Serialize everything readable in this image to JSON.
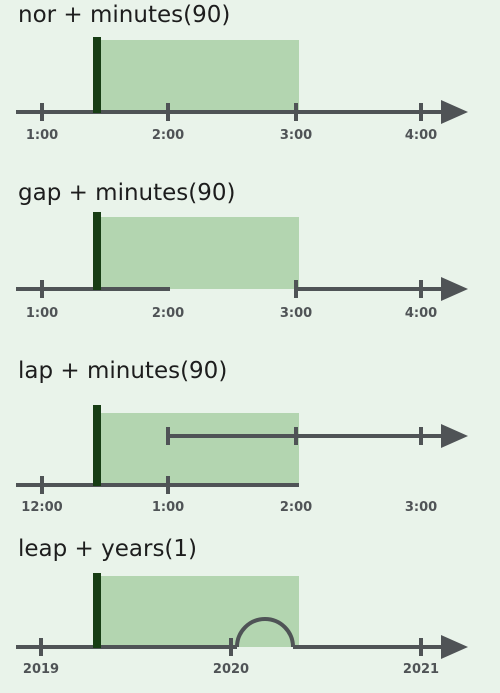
{
  "colors": {
    "background": "#e9f3ea",
    "axis": "#4f5356",
    "interval_fill": "#b3d5b0",
    "start_marker": "#173d14"
  },
  "panels": [
    {
      "title": "nor + minutes(90)",
      "ticks": [
        "1:00",
        "2:00",
        "3:00",
        "4:00"
      ],
      "shape": "plain"
    },
    {
      "title": "gap + minutes(90)",
      "ticks": [
        "1:00",
        "2:00",
        "3:00",
        "4:00"
      ],
      "shape": "gap"
    },
    {
      "title": "lap + minutes(90)",
      "ticks": [
        "12:00",
        "1:00",
        "2:00",
        "3:00"
      ],
      "shape": "lap"
    },
    {
      "title": "leap + years(1)",
      "ticks": [
        "2019",
        "2020",
        "2021"
      ],
      "shape": "leap"
    }
  ]
}
